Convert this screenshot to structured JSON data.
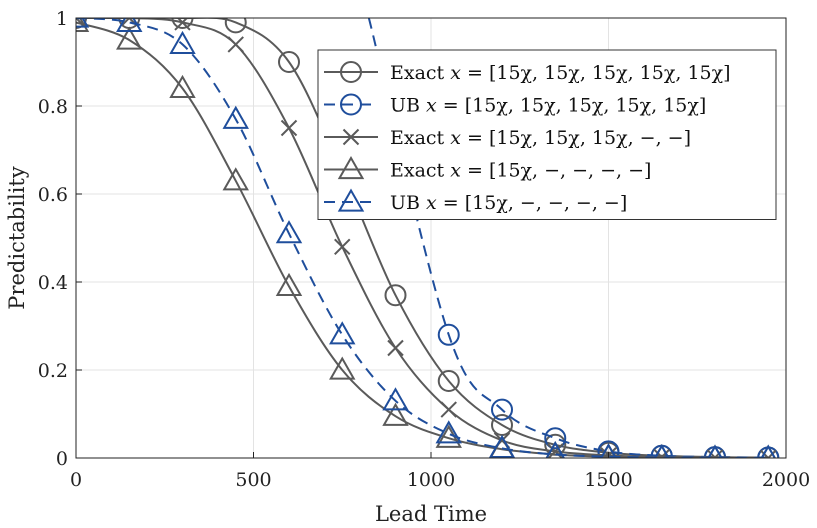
{
  "chart_data": {
    "type": "line",
    "xlabel": "Lead Time",
    "ylabel": "Predictability",
    "xlim": [
      0,
      2000
    ],
    "ylim": [
      0,
      1
    ],
    "xticks": [
      0,
      500,
      1000,
      1500,
      2000
    ],
    "xtick_labels": [
      "0",
      "500",
      "1000",
      "1500",
      "2000"
    ],
    "yticks": [
      0,
      0.2,
      0.4,
      0.6,
      0.8,
      1
    ],
    "ytick_labels": [
      "0",
      "0.2",
      "0.4",
      "0.6",
      "0.8",
      "1"
    ],
    "grid": true,
    "legend_position": "top-right",
    "x": [
      0,
      150,
      300,
      450,
      600,
      750,
      900,
      1050,
      1200,
      1350,
      1500,
      1650,
      1800,
      1950
    ],
    "series": [
      {
        "name": "Exact x = [15χ,15χ,15χ,15χ,15χ]",
        "marker": "circle",
        "dash": false,
        "color": "#5a5a5a",
        "values": [
          1.0,
          1.0,
          1.0,
          0.99,
          0.9,
          0.65,
          0.37,
          0.175,
          0.075,
          0.03,
          0.012,
          0.005,
          0.002,
          0.001
        ]
      },
      {
        "name": "UB x = [15χ,15χ,15χ,15χ,15χ]",
        "marker": "circle",
        "dash": true,
        "color": "#1f4e9c",
        "curve_start": [
          825,
          1.0
        ],
        "values": [
          null,
          null,
          null,
          null,
          null,
          null,
          null,
          0.28,
          0.11,
          0.045,
          0.015,
          0.005,
          0.002,
          0.001
        ]
      },
      {
        "name": "Exact x = [15χ,15χ,15χ,−,−]",
        "marker": "x",
        "dash": false,
        "color": "#5a5a5a",
        "values": [
          1.0,
          1.0,
          0.99,
          0.94,
          0.75,
          0.48,
          0.25,
          0.11,
          0.04,
          0.015,
          0.006,
          0.002,
          0.001,
          0.0
        ]
      },
      {
        "name": "Exact x = [15χ,−,−,−,−]",
        "marker": "triangle",
        "dash": false,
        "color": "#5a5a5a",
        "values": [
          0.99,
          0.95,
          0.84,
          0.63,
          0.39,
          0.2,
          0.095,
          0.045,
          0.02,
          0.008,
          0.003,
          0.001,
          0.0,
          0.0
        ]
      },
      {
        "name": "UB x = [15χ,−,−,−,−]",
        "marker": "triangle",
        "dash": true,
        "color": "#1f4e9c",
        "values": [
          1.0,
          0.99,
          0.94,
          0.77,
          0.51,
          0.28,
          0.13,
          0.055,
          0.022,
          0.008,
          0.003,
          0.001,
          0.0,
          0.0
        ]
      }
    ],
    "legend": [
      {
        "prefix": "Exact",
        "vector": "[15χ, 15χ, 15χ, 15χ, 15χ]"
      },
      {
        "prefix": "UB",
        "vector": "[15χ, 15χ, 15χ, 15χ, 15χ]"
      },
      {
        "prefix": "Exact",
        "vector": "[15χ, 15χ, 15χ, −, −]"
      },
      {
        "prefix": "Exact",
        "vector": "[15χ, −, −, −, −]"
      },
      {
        "prefix": "UB",
        "vector": "[15χ, −, −, −, −]"
      }
    ],
    "legend_var": "x",
    "legend_eq": "="
  }
}
